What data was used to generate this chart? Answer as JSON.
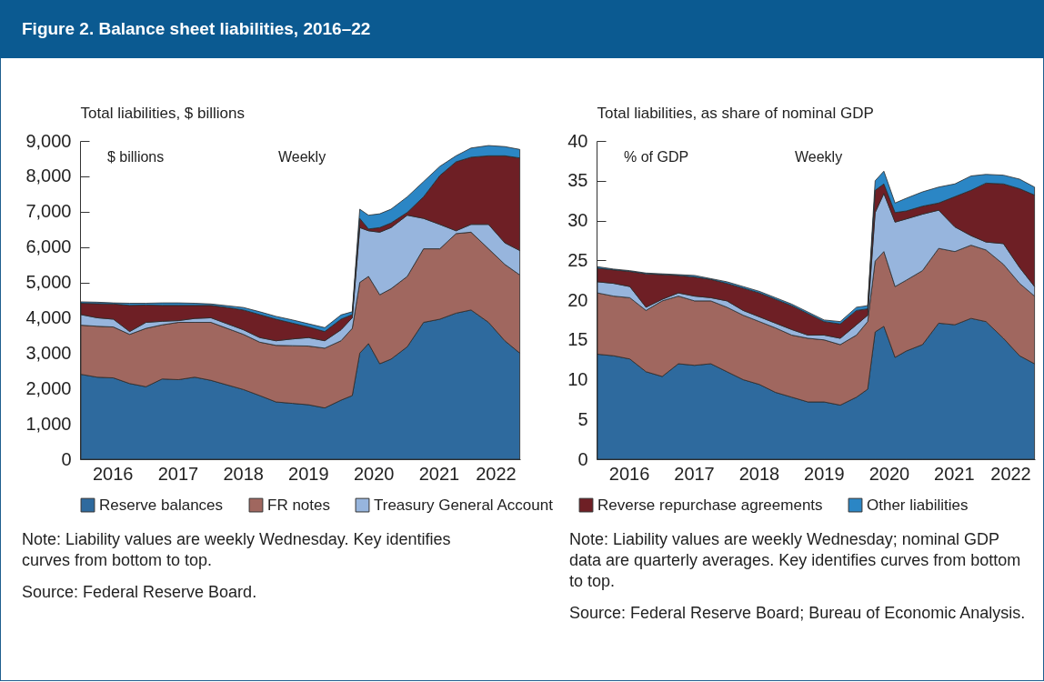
{
  "chart_data": [
    {
      "type": "area",
      "title": "Figure 2. Balance sheet liabilities, 2016–22",
      "ylabel": "Total liabilities, $ billions",
      "stacked": true,
      "legend": "bottom",
      "annotations": [
        "$ billions",
        "Weekly",
        "Note: Liability values are weekly Wednesday. Key identifies curves from bottom to top.",
        "Source: Federal Reserve Board."
      ],
      "x": [
        "2016-01-06",
        "2016-04-06",
        "2016-07-06",
        "2016-10-05",
        "2017-01-04",
        "2017-04-05",
        "2017-07-05",
        "2017-10-04",
        "2018-01-03",
        "2018-04-04",
        "2018-07-04",
        "2018-10-03",
        "2019-01-02",
        "2019-04-03",
        "2019-07-03",
        "2019-10-02",
        "2020-01-01",
        "2020-03-04",
        "2020-04-15",
        "2020-06-03",
        "2020-08-05",
        "2020-10-07",
        "2021-01-06",
        "2021-04-07",
        "2021-07-07",
        "2021-10-06",
        "2021-12-29",
        "2022-04-06",
        "2022-07-06",
        "2022-09-28"
      ],
      "xlim": [
        "2016-01-01",
        "2022-09-30"
      ],
      "xticks": [
        {
          "value": "2016-07-01",
          "label": "2016"
        },
        {
          "value": "2017-07-01",
          "label": "2017"
        },
        {
          "value": "2018-07-01",
          "label": "2018"
        },
        {
          "value": "2019-07-01",
          "label": "2019"
        },
        {
          "value": "2020-07-01",
          "label": "2020"
        },
        {
          "value": "2021-07-01",
          "label": "2021"
        },
        {
          "value": "2022-05-15",
          "label": "2022"
        },
        {
          "value": "2017-01-01",
          "label": null
        },
        {
          "value": "2018-01-01",
          "label": null
        },
        {
          "value": "2019-01-01",
          "label": null
        },
        {
          "value": "2020-01-01",
          "label": null
        },
        {
          "value": "2021-01-01",
          "label": null
        },
        {
          "value": "2022-01-01",
          "label": null
        }
      ],
      "ylim": [
        0,
        9000
      ],
      "yticks": [
        0,
        {
          "value": 1000,
          "label": "1,000"
        },
        {
          "value": 2000,
          "label": "2,000"
        },
        {
          "value": 3000,
          "label": "3,000"
        },
        {
          "value": 4000,
          "label": "4,000"
        },
        {
          "value": 5000,
          "label": "5,000"
        },
        {
          "value": 6000,
          "label": "6,000"
        },
        {
          "value": 7000,
          "label": "7,000"
        },
        {
          "value": 8000,
          "label": "8,000"
        },
        {
          "value": 9000,
          "label": "9,000"
        }
      ],
      "series": [
        {
          "name": "Reserve balances",
          "color": "#2e6a9e",
          "values": [
            2400,
            2320,
            2300,
            2140,
            2050,
            2270,
            2250,
            2320,
            2230,
            2100,
            1970,
            1800,
            1620,
            1580,
            1540,
            1450,
            1670,
            1800,
            3000,
            3270,
            2700,
            2830,
            3180,
            3870,
            3960,
            4130,
            4220,
            3870,
            3350,
            3000
          ]
        },
        {
          "name": "FR notes",
          "color": "#a0675f",
          "values": [
            1390,
            1440,
            1440,
            1390,
            1650,
            1530,
            1620,
            1550,
            1640,
            1600,
            1560,
            1510,
            1600,
            1630,
            1660,
            1690,
            1680,
            1900,
            2000,
            1900,
            1950,
            1990,
            1990,
            2080,
            1990,
            2250,
            2200,
            2080,
            2160,
            2210
          ]
        },
        {
          "name": "Treasury General Account",
          "color": "#97b5dd",
          "values": [
            300,
            240,
            220,
            80,
            170,
            100,
            50,
            110,
            130,
            130,
            130,
            130,
            130,
            190,
            240,
            210,
            310,
            300,
            1550,
            1290,
            1770,
            1730,
            1730,
            860,
            690,
            80,
            220,
            690,
            610,
            690
          ]
        },
        {
          "name": "Reverse repurchase agreements",
          "color": "#6e1f25",
          "values": [
            320,
            400,
            430,
            740,
            490,
            450,
            430,
            370,
            350,
            460,
            560,
            650,
            610,
            450,
            300,
            260,
            300,
            90,
            260,
            50,
            130,
            130,
            80,
            610,
            1380,
            1950,
            1900,
            1940,
            2460,
            2620
          ]
        },
        {
          "name": "Other liabilities",
          "color": "#2b86c5",
          "values": [
            40,
            40,
            30,
            60,
            50,
            70,
            70,
            60,
            40,
            50,
            70,
            80,
            80,
            90,
            90,
            110,
            120,
            80,
            260,
            390,
            390,
            390,
            440,
            430,
            260,
            170,
            260,
            290,
            260,
            240
          ]
        }
      ]
    },
    {
      "type": "area",
      "ylabel": "Total liabilities, as share of nominal GDP",
      "stacked": true,
      "legend": "bottom",
      "annotations": [
        "% of GDP",
        "Weekly",
        "Note: Liability values are weekly Wednesday; nominal GDP data are quarterly averages. Key identifies curves from bottom to top.",
        "Source: Federal Reserve Board; Bureau of Economic Analysis."
      ],
      "x": [
        "2016-01-06",
        "2016-04-06",
        "2016-07-06",
        "2016-10-05",
        "2017-01-04",
        "2017-04-05",
        "2017-07-05",
        "2017-10-04",
        "2018-01-03",
        "2018-04-04",
        "2018-07-04",
        "2018-10-03",
        "2019-01-02",
        "2019-04-03",
        "2019-07-03",
        "2019-10-02",
        "2020-01-01",
        "2020-03-04",
        "2020-04-15",
        "2020-06-03",
        "2020-08-05",
        "2020-10-07",
        "2021-01-06",
        "2021-04-07",
        "2021-07-07",
        "2021-10-06",
        "2021-12-29",
        "2022-04-06",
        "2022-07-06",
        "2022-09-28"
      ],
      "xlim": [
        "2016-01-01",
        "2022-09-30"
      ],
      "xticks": [
        {
          "value": "2016-07-01",
          "label": "2016"
        },
        {
          "value": "2017-07-01",
          "label": "2017"
        },
        {
          "value": "2018-07-01",
          "label": "2018"
        },
        {
          "value": "2019-07-01",
          "label": "2019"
        },
        {
          "value": "2020-07-01",
          "label": "2020"
        },
        {
          "value": "2021-07-01",
          "label": "2021"
        },
        {
          "value": "2022-05-15",
          "label": "2022"
        },
        {
          "value": "2017-01-01",
          "label": null
        },
        {
          "value": "2018-01-01",
          "label": null
        },
        {
          "value": "2019-01-01",
          "label": null
        },
        {
          "value": "2020-01-01",
          "label": null
        },
        {
          "value": "2021-01-01",
          "label": null
        },
        {
          "value": "2022-01-01",
          "label": null
        }
      ],
      "ylim": [
        0,
        40
      ],
      "yticks": [
        0,
        5,
        10,
        15,
        20,
        25,
        30,
        35,
        40
      ],
      "series": [
        {
          "name": "Reserve balances",
          "color": "#2e6a9e",
          "values": [
            13.2,
            13.0,
            12.6,
            11.0,
            10.4,
            12.0,
            11.8,
            12.0,
            11.0,
            10.0,
            9.4,
            8.4,
            7.8,
            7.2,
            7.2,
            6.8,
            7.8,
            8.8,
            16.0,
            16.7,
            12.8,
            13.6,
            14.4,
            17.1,
            16.9,
            17.7,
            17.3,
            15.2,
            13.0,
            12.0
          ]
        },
        {
          "name": "FR notes",
          "color": "#a0675f",
          "values": [
            7.7,
            7.5,
            7.7,
            7.7,
            9.5,
            8.5,
            8.1,
            7.9,
            8.1,
            8.1,
            7.9,
            8.1,
            7.8,
            8.0,
            7.8,
            7.6,
            7.8,
            8.5,
            8.9,
            9.4,
            8.9,
            8.9,
            9.3,
            9.4,
            9.2,
            9.2,
            9.0,
            9.3,
            9.1,
            8.5
          ]
        },
        {
          "name": "Treasury General Account",
          "color": "#97b5dd",
          "values": [
            1.4,
            1.6,
            1.4,
            0.4,
            0.2,
            0.4,
            0.6,
            0.4,
            0.8,
            0.6,
            0.6,
            0.6,
            0.7,
            0.4,
            0.6,
            0.8,
            1.3,
            0.8,
            6.1,
            7.3,
            8.1,
            7.7,
            7.1,
            4.8,
            3.1,
            1.2,
            1.0,
            2.6,
            2.0,
            1.2
          ]
        },
        {
          "name": "Reverse repurchase agreements",
          "color": "#6e1f25",
          "values": [
            1.7,
            1.7,
            1.9,
            4.2,
            3.1,
            2.2,
            2.4,
            2.3,
            2.2,
            2.8,
            3.0,
            3.0,
            3.0,
            2.7,
            1.7,
            1.8,
            1.8,
            0.8,
            2.8,
            1.2,
            1.2,
            1.0,
            1.0,
            0.9,
            3.8,
            5.7,
            7.4,
            7.5,
            9.9,
            11.5
          ]
        },
        {
          "name": "Other liabilities",
          "color": "#2b86c5",
          "values": [
            0.2,
            0.1,
            0.1,
            0.1,
            0.1,
            0.1,
            0.2,
            0.1,
            0.2,
            0.2,
            0.2,
            0.2,
            0.2,
            0.2,
            0.2,
            0.3,
            0.4,
            0.4,
            1.2,
            1.6,
            1.2,
            1.6,
            1.8,
            2.0,
            1.6,
            1.8,
            1.1,
            1.1,
            1.2,
            1.0
          ]
        }
      ]
    }
  ]
}
